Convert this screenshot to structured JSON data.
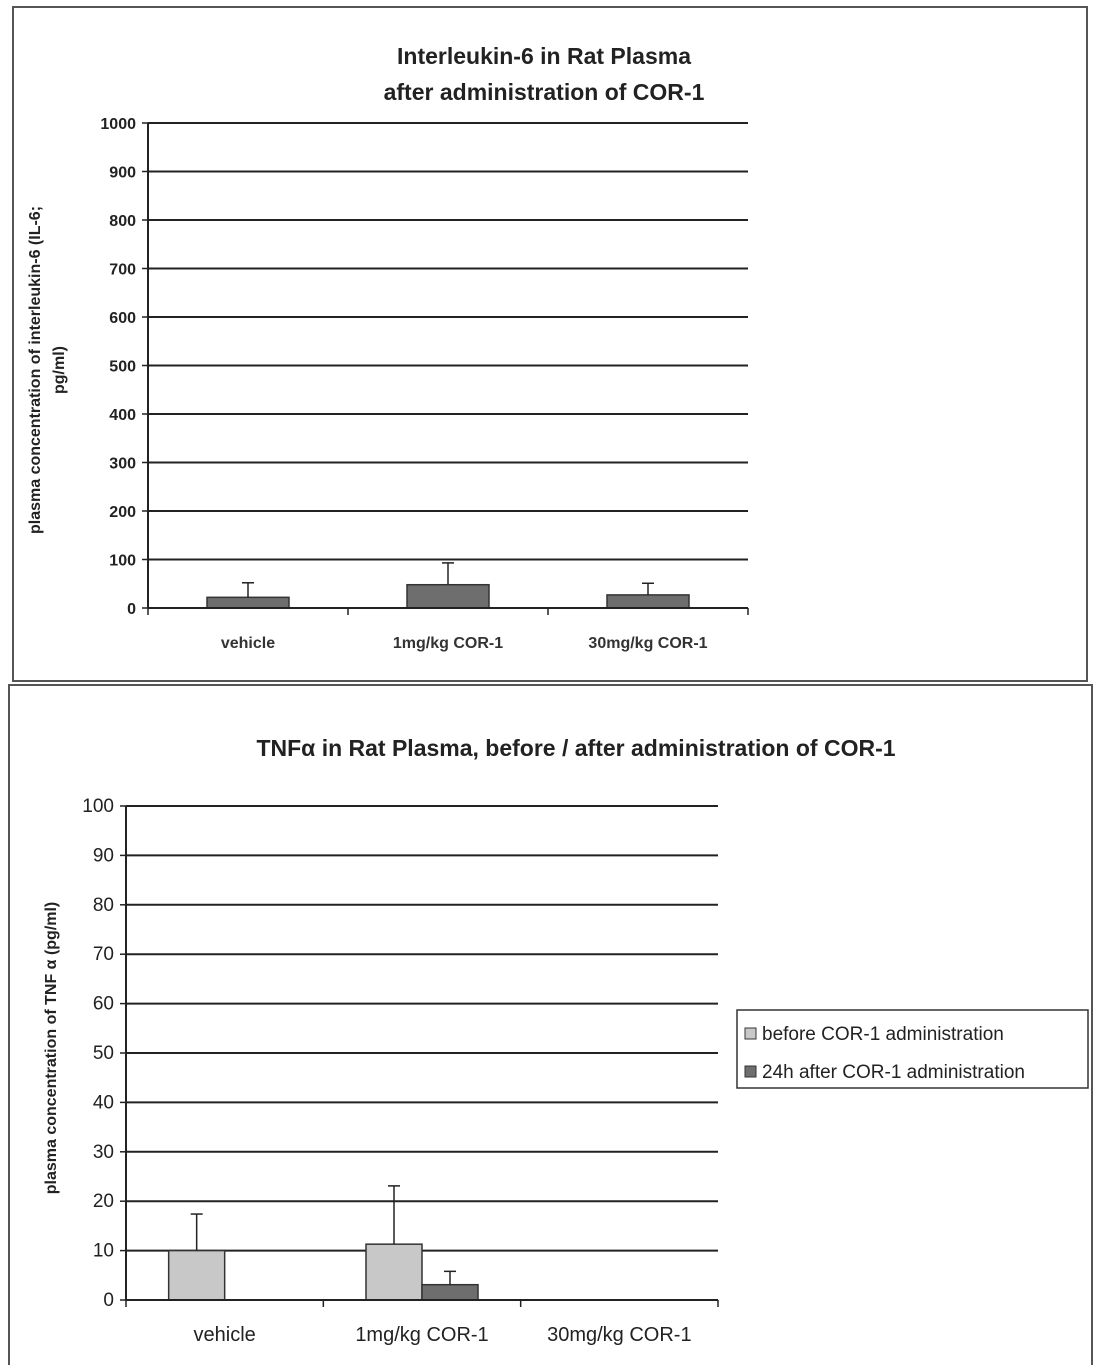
{
  "chart_data": [
    {
      "type": "bar",
      "title": "Interleukin-6 in Rat Plasma",
      "subtitle": "after administration of COR-1",
      "ylabel_line1": "plasma concentration of interleukin-6  (IL-6;",
      "ylabel_line2": "pg/ml)",
      "xlabel": "",
      "categories": [
        "vehicle",
        "1mg/kg COR-1",
        "30mg/kg COR-1"
      ],
      "series": [
        {
          "values": [
            22,
            48,
            27
          ],
          "errors": [
            30,
            45,
            24
          ],
          "color": "#6e6e6e"
        }
      ],
      "ylim": [
        0,
        1000
      ],
      "yticks": [
        "0",
        "100",
        "200",
        "300",
        "400",
        "500",
        "600",
        "700",
        "800",
        "900",
        "1000"
      ],
      "grid": true,
      "legend": "none"
    },
    {
      "type": "bar",
      "title": "TNFα in Rat Plasma, before / after administration of COR-1",
      "ylabel": "plasma concentration of TNF α (pg/ml)",
      "xlabel": "",
      "categories": [
        "vehicle",
        "1mg/kg COR-1",
        "30mg/kg COR-1"
      ],
      "series": [
        {
          "name": "before COR-1 administration",
          "values": [
            10,
            11.3,
            null
          ],
          "errors": [
            7.4,
            11.8,
            null
          ],
          "color": "#c8c8c8"
        },
        {
          "name": "24h after COR-1 administration",
          "values": [
            null,
            3.1,
            null
          ],
          "errors": [
            null,
            2.7,
            null
          ],
          "color": "#6e6e6e"
        }
      ],
      "ylim": [
        0,
        100
      ],
      "yticks": [
        "0",
        "10",
        "20",
        "30",
        "40",
        "50",
        "60",
        "70",
        "80",
        "90",
        "100"
      ],
      "grid": true,
      "legend": "right"
    }
  ]
}
